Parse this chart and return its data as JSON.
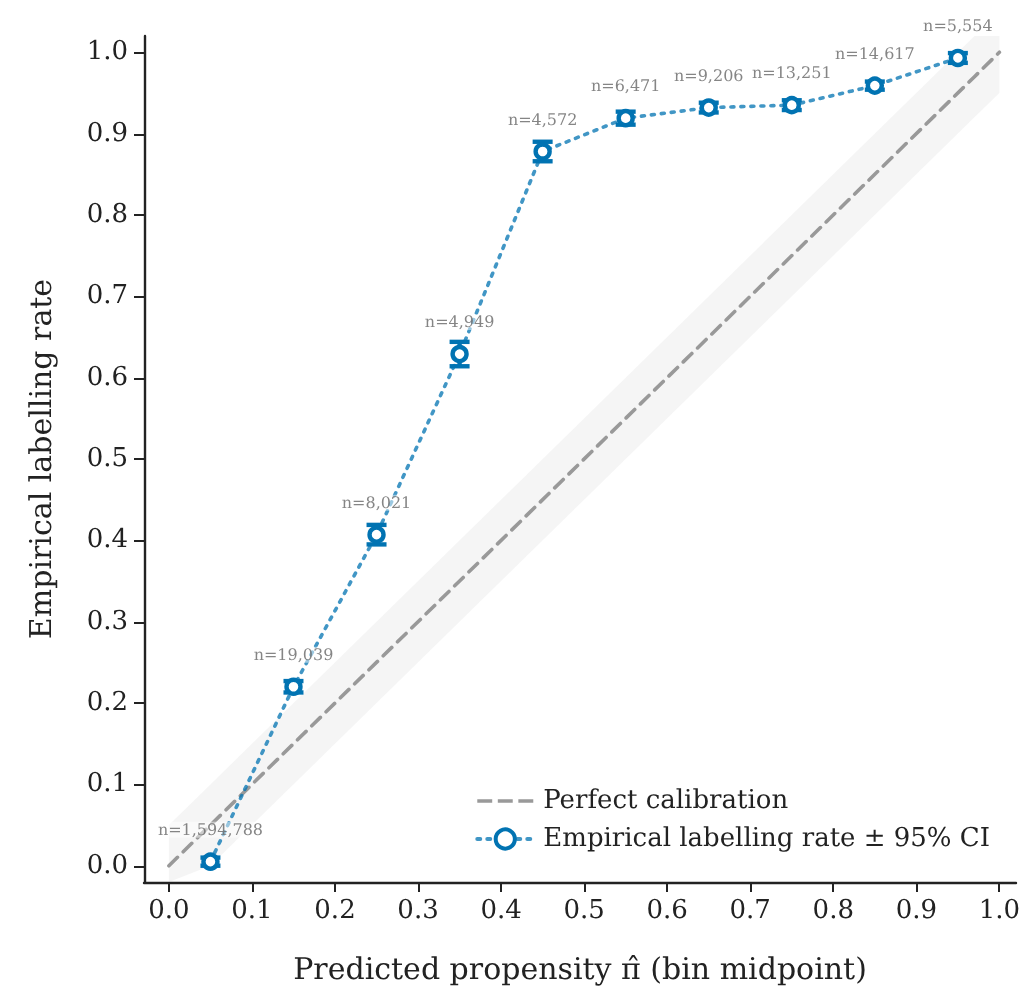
{
  "chart_data": {
    "type": "line",
    "xlabel": "Predicted propensity π̂ (bin midpoint)",
    "ylabel": "Empirical labelling rate",
    "xlim": [
      -0.03,
      1.02
    ],
    "ylim": [
      -0.02,
      1.02
    ],
    "xticks": [
      {
        "value": 0,
        "label": "0.0"
      },
      {
        "value": 0.1,
        "label": "0.1"
      },
      {
        "value": 0.2,
        "label": "0.2"
      },
      {
        "value": 0.3,
        "label": "0.3"
      },
      {
        "value": 0.4,
        "label": "0.4"
      },
      {
        "value": 0.5,
        "label": "0.5"
      },
      {
        "value": 0.6,
        "label": "0.6"
      },
      {
        "value": 0.7,
        "label": "0.7"
      },
      {
        "value": 0.8,
        "label": "0.8"
      },
      {
        "value": 0.9,
        "label": "0.9"
      },
      {
        "value": 1,
        "label": "1.0"
      }
    ],
    "yticks": [
      {
        "value": 0,
        "label": "0.0"
      },
      {
        "value": 0.1,
        "label": "0.1"
      },
      {
        "value": 0.2,
        "label": "0.2"
      },
      {
        "value": 0.3,
        "label": "0.3"
      },
      {
        "value": 0.4,
        "label": "0.4"
      },
      {
        "value": 0.5,
        "label": "0.5"
      },
      {
        "value": 0.6,
        "label": "0.6"
      },
      {
        "value": 0.7,
        "label": "0.7"
      },
      {
        "value": 0.8,
        "label": "0.8"
      },
      {
        "value": 0.9,
        "label": "0.9"
      },
      {
        "value": 1,
        "label": "1.0"
      }
    ],
    "series": [
      {
        "name": "Perfect calibration",
        "color": "#999999",
        "line_style": "dashed",
        "marker": "none",
        "x": [
          0,
          0.05,
          0.97,
          1
        ],
        "values": [
          0,
          0.05,
          0.97,
          1
        ],
        "lower": [
          -0.02,
          0,
          0.92,
          0.95
        ],
        "upper": [
          0.05,
          0.1,
          1.02,
          1.02
        ]
      },
      {
        "name": "Empirical labelling rate ± 95% CI",
        "color": "#0173b2",
        "line_style": "dotted",
        "marker": "circle",
        "x": [
          0.05,
          0.15,
          0.25,
          0.35,
          0.45,
          0.55,
          0.65,
          0.75,
          0.85,
          0.95
        ],
        "values": [
          0.005,
          0.22,
          0.407,
          0.629,
          0.878,
          0.919,
          0.932,
          0.935,
          0.959,
          0.993
        ],
        "errors": [
          0.005,
          0.007,
          0.012,
          0.015,
          0.012,
          0.008,
          0.006,
          0.006,
          0.005,
          0.006
        ]
      }
    ],
    "annotations": [
      {
        "text": "n=1,594,788",
        "x": 0.05,
        "y": 0.005
      },
      {
        "text": "n=19,039",
        "x": 0.15,
        "y": 0.22
      },
      {
        "text": "n=8,021",
        "x": 0.25,
        "y": 0.407
      },
      {
        "text": "n=4,949",
        "x": 0.35,
        "y": 0.629
      },
      {
        "text": "n=4,572",
        "x": 0.45,
        "y": 0.878
      },
      {
        "text": "n=6,471",
        "x": 0.55,
        "y": 0.919
      },
      {
        "text": "n=9,206",
        "x": 0.65,
        "y": 0.932
      },
      {
        "text": "n=13,251",
        "x": 0.75,
        "y": 0.935
      },
      {
        "text": "n=14,617",
        "x": 0.85,
        "y": 0.959
      },
      {
        "text": "n=5,554",
        "x": 0.95,
        "y": 0.993
      }
    ],
    "legend": "bottom right",
    "grid": false
  }
}
